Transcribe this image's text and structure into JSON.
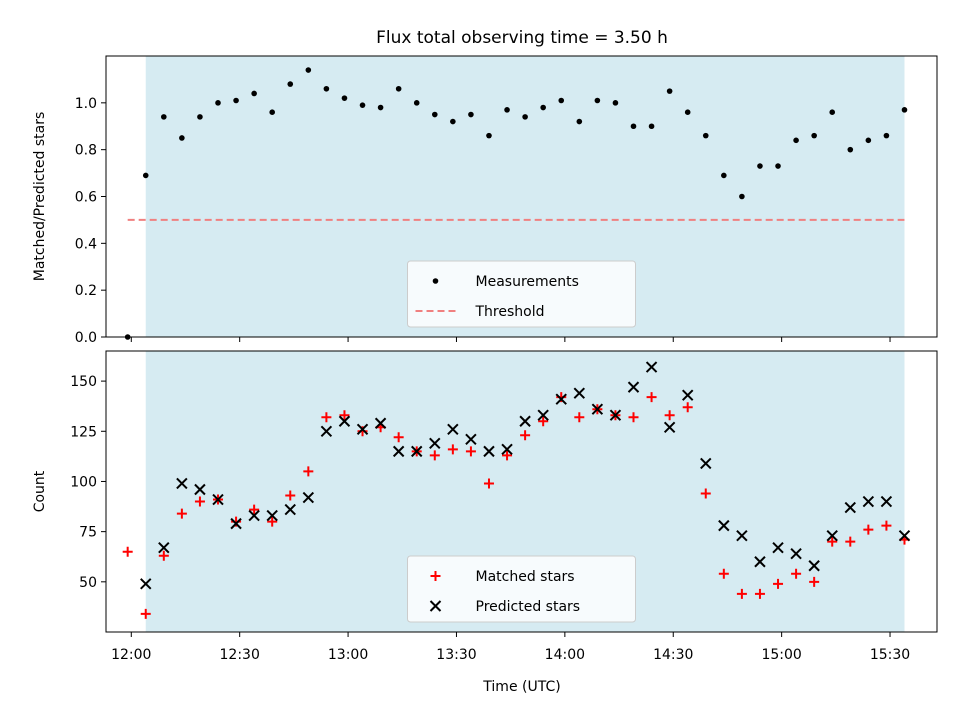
{
  "title": "Flux total observing time = 3.50 h",
  "xlabel": "Time (UTC)",
  "x_tick_labels": [
    "12:00",
    "12:30",
    "13:00",
    "13:30",
    "14:00",
    "14:30",
    "15:00",
    "15:30"
  ],
  "colors": {
    "shade": "#add8e6",
    "measure": "#000000",
    "threshold": "#f08080",
    "matched": "#ff0000",
    "predicted": "#000000"
  },
  "chart_data": [
    {
      "type": "scatter",
      "ylabel": "Matched/Predicted stars",
      "ylim": [
        0,
        1.2
      ],
      "yticks": [
        0.0,
        0.2,
        0.4,
        0.6,
        0.8,
        1.0
      ],
      "ytick_labels": [
        "0.0",
        "0.2",
        "0.4",
        "0.6",
        "0.8",
        "1.0"
      ],
      "xlim": [
        "11:53",
        "15:43"
      ],
      "shaded_span": [
        "12:04",
        "15:34"
      ],
      "threshold": 0.5,
      "threshold_span": [
        "11:59",
        "15:34"
      ],
      "legend": [
        "Measurements",
        "Threshold"
      ],
      "legend_position": "lower center",
      "series": [
        {
          "name": "Measurements",
          "marker": "dot",
          "points": [
            [
              "11:59",
              0.0
            ],
            [
              "12:04",
              0.69
            ],
            [
              "12:09",
              0.94
            ],
            [
              "12:14",
              0.85
            ],
            [
              "12:19",
              0.94
            ],
            [
              "12:24",
              1.0
            ],
            [
              "12:29",
              1.01
            ],
            [
              "12:34",
              1.04
            ],
            [
              "12:39",
              0.96
            ],
            [
              "12:44",
              1.08
            ],
            [
              "12:49",
              1.14
            ],
            [
              "12:54",
              1.06
            ],
            [
              "12:59",
              1.02
            ],
            [
              "13:04",
              0.99
            ],
            [
              "13:09",
              0.98
            ],
            [
              "13:14",
              1.06
            ],
            [
              "13:19",
              1.0
            ],
            [
              "13:24",
              0.95
            ],
            [
              "13:29",
              0.92
            ],
            [
              "13:34",
              0.95
            ],
            [
              "13:39",
              0.86
            ],
            [
              "13:44",
              0.97
            ],
            [
              "13:49",
              0.94
            ],
            [
              "13:54",
              0.98
            ],
            [
              "13:59",
              1.01
            ],
            [
              "14:04",
              0.92
            ],
            [
              "14:09",
              1.01
            ],
            [
              "14:14",
              1.0
            ],
            [
              "14:19",
              0.9
            ],
            [
              "14:24",
              0.9
            ],
            [
              "14:29",
              1.05
            ],
            [
              "14:34",
              0.96
            ],
            [
              "14:39",
              0.86
            ],
            [
              "14:44",
              0.69
            ],
            [
              "14:49",
              0.6
            ],
            [
              "14:54",
              0.73
            ],
            [
              "14:59",
              0.73
            ],
            [
              "15:04",
              0.84
            ],
            [
              "15:09",
              0.86
            ],
            [
              "15:14",
              0.96
            ],
            [
              "15:19",
              0.8
            ],
            [
              "15:24",
              0.84
            ],
            [
              "15:29",
              0.86
            ],
            [
              "15:34",
              0.97
            ]
          ]
        }
      ]
    },
    {
      "type": "scatter",
      "ylabel": "Count",
      "ylim": [
        25,
        165
      ],
      "yticks": [
        50,
        75,
        100,
        125,
        150
      ],
      "ytick_labels": [
        "50",
        "75",
        "100",
        "125",
        "150"
      ],
      "xlim": [
        "11:53",
        "15:43"
      ],
      "shaded_span": [
        "12:04",
        "15:34"
      ],
      "legend": [
        "Matched stars",
        "Predicted stars"
      ],
      "legend_position": "lower center",
      "series": [
        {
          "name": "Matched stars",
          "marker": "plus",
          "points": [
            [
              "11:59",
              65
            ],
            [
              "12:04",
              34
            ],
            [
              "12:09",
              63
            ],
            [
              "12:14",
              84
            ],
            [
              "12:19",
              90
            ],
            [
              "12:24",
              91
            ],
            [
              "12:29",
              80
            ],
            [
              "12:34",
              86
            ],
            [
              "12:39",
              80
            ],
            [
              "12:44",
              93
            ],
            [
              "12:49",
              105
            ],
            [
              "12:54",
              132
            ],
            [
              "12:59",
              133
            ],
            [
              "13:04",
              125
            ],
            [
              "13:09",
              127
            ],
            [
              "13:14",
              122
            ],
            [
              "13:19",
              115
            ],
            [
              "13:24",
              113
            ],
            [
              "13:29",
              116
            ],
            [
              "13:34",
              115
            ],
            [
              "13:39",
              99
            ],
            [
              "13:44",
              113
            ],
            [
              "13:49",
              123
            ],
            [
              "13:54",
              130
            ],
            [
              "13:59",
              142
            ],
            [
              "14:04",
              132
            ],
            [
              "14:09",
              136
            ],
            [
              "14:14",
              133
            ],
            [
              "14:19",
              132
            ],
            [
              "14:24",
              142
            ],
            [
              "14:29",
              133
            ],
            [
              "14:34",
              137
            ],
            [
              "14:39",
              94
            ],
            [
              "14:44",
              54
            ],
            [
              "14:49",
              44
            ],
            [
              "14:54",
              44
            ],
            [
              "14:59",
              49
            ],
            [
              "15:04",
              54
            ],
            [
              "15:09",
              50
            ],
            [
              "15:14",
              70
            ],
            [
              "15:19",
              70
            ],
            [
              "15:24",
              76
            ],
            [
              "15:29",
              78
            ],
            [
              "15:34",
              71
            ]
          ]
        },
        {
          "name": "Predicted stars",
          "marker": "x",
          "points": [
            [
              "12:04",
              49
            ],
            [
              "12:09",
              67
            ],
            [
              "12:14",
              99
            ],
            [
              "12:19",
              96
            ],
            [
              "12:24",
              91
            ],
            [
              "12:29",
              79
            ],
            [
              "12:34",
              83
            ],
            [
              "12:39",
              83
            ],
            [
              "12:44",
              86
            ],
            [
              "12:49",
              92
            ],
            [
              "12:54",
              125
            ],
            [
              "12:59",
              130
            ],
            [
              "13:04",
              126
            ],
            [
              "13:09",
              129
            ],
            [
              "13:14",
              115
            ],
            [
              "13:19",
              115
            ],
            [
              "13:24",
              119
            ],
            [
              "13:29",
              126
            ],
            [
              "13:34",
              121
            ],
            [
              "13:39",
              115
            ],
            [
              "13:44",
              116
            ],
            [
              "13:49",
              130
            ],
            [
              "13:54",
              133
            ],
            [
              "13:59",
              141
            ],
            [
              "14:04",
              144
            ],
            [
              "14:09",
              136
            ],
            [
              "14:14",
              133
            ],
            [
              "14:19",
              147
            ],
            [
              "14:24",
              157
            ],
            [
              "14:29",
              127
            ],
            [
              "14:34",
              143
            ],
            [
              "14:39",
              109
            ],
            [
              "14:44",
              78
            ],
            [
              "14:49",
              73
            ],
            [
              "14:54",
              60
            ],
            [
              "14:59",
              67
            ],
            [
              "15:04",
              64
            ],
            [
              "15:09",
              58
            ],
            [
              "15:14",
              73
            ],
            [
              "15:19",
              87
            ],
            [
              "15:24",
              90
            ],
            [
              "15:29",
              90
            ],
            [
              "15:34",
              73
            ]
          ]
        }
      ]
    }
  ]
}
